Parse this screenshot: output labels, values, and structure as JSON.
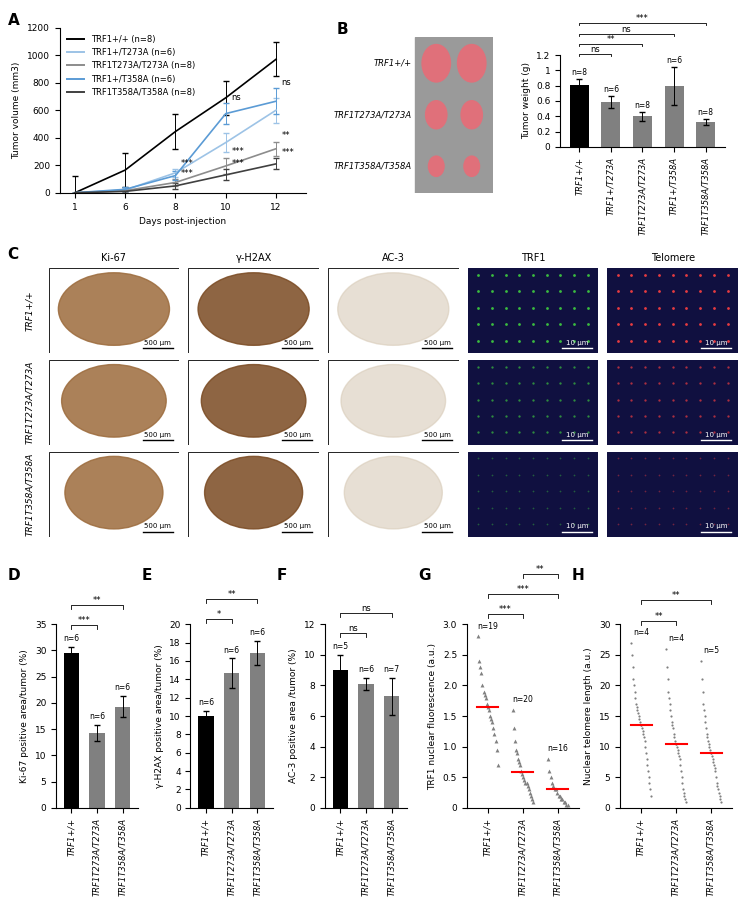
{
  "chart_data": [
    {
      "panel": "A",
      "type": "line",
      "x_label": "Days post-injection",
      "y_label": "Tumor volume (mm3)",
      "categories": [
        "1",
        "6",
        "8",
        "10",
        "12"
      ],
      "ylim": [
        0,
        1200
      ],
      "yticks": [
        0,
        200,
        400,
        600,
        800,
        1000,
        1200
      ],
      "legend": "upper left",
      "series": [
        {
          "name": "TRF1+/+ (n=8)",
          "color": "#000000",
          "values": [
            0,
            165,
            445,
            690,
            970
          ],
          "errors": [
            125,
            125,
            125,
            125,
            125
          ]
        },
        {
          "name": "TRF1+/T273A (n=6)",
          "color": "#9dc3e6",
          "values": [
            0,
            20,
            145,
            365,
            600
          ],
          "errors": [
            0,
            15,
            30,
            70,
            90
          ]
        },
        {
          "name": "TRF1T273A/T273A (n=8)",
          "color": "#8c8c8c",
          "values": [
            0,
            15,
            75,
            195,
            320
          ],
          "errors": [
            0,
            10,
            25,
            60,
            50
          ]
        },
        {
          "name": "TRF1+/T358A (n=6)",
          "color": "#5b9bd5",
          "values": [
            0,
            25,
            125,
            575,
            665
          ],
          "errors": [
            0,
            15,
            30,
            75,
            95
          ]
        },
        {
          "name": "TRF1T358A/T358A (n=8)",
          "color": "#404040",
          "values": [
            0,
            10,
            50,
            130,
            210
          ],
          "errors": [
            0,
            8,
            20,
            40,
            40
          ]
        }
      ],
      "annotations": [
        {
          "series": "TRF1+/T358A (n=6)",
          "x": "10",
          "label": "ns"
        },
        {
          "series": "TRF1+/T358A (n=6)",
          "x": "12",
          "label": "ns"
        },
        {
          "series": "TRF1T273A/T273A (n=8)",
          "x": "8",
          "label": "***"
        },
        {
          "series": "TRF1T358A/T358A (n=8)",
          "x": "8",
          "label": "***"
        },
        {
          "series": "TRF1T273A/T273A (n=8)",
          "x": "10",
          "label": "***"
        },
        {
          "series": "TRF1T358A/T358A (n=8)",
          "x": "10",
          "label": "***"
        },
        {
          "series": "TRF1T273A/T273A (n=8)",
          "x": "12",
          "label": "**"
        },
        {
          "series": "TRF1T358A/T358A (n=8)",
          "x": "12",
          "label": "***"
        }
      ]
    },
    {
      "panel": "B",
      "type": "bar",
      "y_label": "Tumor weight (g)",
      "categories": [
        "TRF1+/+",
        "TRF1+/T273A",
        "TRF1T273A/T273A",
        "TRF1+/T358A",
        "TRF1T358A/T358A"
      ],
      "values": [
        0.81,
        0.59,
        0.4,
        0.8,
        0.33
      ],
      "errors": [
        0.08,
        0.08,
        0.06,
        0.25,
        0.04
      ],
      "colors": [
        "#000000",
        "#808080",
        "#808080",
        "#808080",
        "#808080"
      ],
      "n_labels": [
        "n=8",
        "n=6",
        "n=8",
        "n=6",
        "n=8"
      ],
      "ylim": [
        0,
        1.2
      ],
      "yticks": [
        0,
        0.2,
        0.4,
        0.6,
        0.8,
        1,
        1.2
      ],
      "significance": [
        {
          "between": [
            "TRF1+/+",
            "TRF1+/T273A"
          ],
          "label": "ns"
        },
        {
          "between": [
            "TRF1+/+",
            "TRF1T273A/T273A"
          ],
          "label": "**"
        },
        {
          "between": [
            "TRF1+/+",
            "TRF1+/T358A"
          ],
          "label": "ns"
        },
        {
          "between": [
            "TRF1+/+",
            "TRF1T358A/T358A"
          ],
          "label": "***"
        }
      ],
      "photo_labels": [
        "TRF1+/+",
        "TRF1T273A/T273A",
        "TRF1T358A/T358A"
      ]
    },
    {
      "panel": "D",
      "type": "bar",
      "y_label": "Ki-67 positive area/tumor (%)",
      "categories": [
        "TRF1+/+",
        "TRF1T273A/T273A",
        "TRF1T358A/T358A"
      ],
      "values": [
        29.5,
        14.3,
        19.3
      ],
      "errors": [
        1.2,
        1.5,
        2.0
      ],
      "colors": [
        "#000000",
        "#808080",
        "#808080"
      ],
      "n_labels": [
        "n=6",
        "n=6",
        "n=6"
      ],
      "ylim": [
        0,
        35
      ],
      "yticks": [
        0,
        5,
        10,
        15,
        20,
        25,
        30,
        35
      ],
      "significance": [
        {
          "between": [
            "TRF1+/+",
            "TRF1T273A/T273A"
          ],
          "label": "***"
        },
        {
          "between": [
            "TRF1+/+",
            "TRF1T358A/T358A"
          ],
          "label": "**"
        }
      ]
    },
    {
      "panel": "E",
      "type": "bar",
      "y_label": "γ-H2AX positive area/tumor (%)",
      "categories": [
        "TRF1+/+",
        "TRF1T273A/T273A",
        "TRF1T358A/T358A"
      ],
      "values": [
        10.0,
        14.7,
        16.9
      ],
      "errors": [
        0.6,
        1.6,
        1.3
      ],
      "colors": [
        "#000000",
        "#808080",
        "#808080"
      ],
      "n_labels": [
        "n=6",
        "n=6",
        "n=6"
      ],
      "ylim": [
        0,
        20
      ],
      "yticks": [
        0,
        2,
        4,
        6,
        8,
        10,
        12,
        14,
        16,
        18,
        20
      ],
      "significance": [
        {
          "between": [
            "TRF1+/+",
            "TRF1T273A/T273A"
          ],
          "label": "*"
        },
        {
          "between": [
            "TRF1+/+",
            "TRF1T358A/T358A"
          ],
          "label": "**"
        }
      ]
    },
    {
      "panel": "F",
      "type": "bar",
      "y_label": "AC-3 positive area /tumor (%)",
      "categories": [
        "TRF1+/+",
        "TRF1T273A/T273A",
        "TRF1T358A/T358A"
      ],
      "values": [
        9.0,
        8.1,
        7.3
      ],
      "errors": [
        1.0,
        0.4,
        1.2
      ],
      "colors": [
        "#000000",
        "#808080",
        "#808080"
      ],
      "n_labels": [
        "n=5",
        "n=6",
        "n=7"
      ],
      "ylim": [
        0,
        12
      ],
      "yticks": [
        0,
        2,
        4,
        6,
        8,
        10,
        12
      ],
      "significance": [
        {
          "between": [
            "TRF1+/+",
            "TRF1T273A/T273A"
          ],
          "label": "ns"
        },
        {
          "between": [
            "TRF1+/+",
            "TRF1T358A/T358A"
          ],
          "label": "ns"
        }
      ]
    },
    {
      "panel": "G",
      "type": "scatter",
      "y_label": "TRF1 nuclear fluorescence (a.u.)",
      "categories": [
        "TRF1+/+",
        "TRF1T273A/T273A",
        "TRF1T358A/T358A"
      ],
      "points": [
        [
          2.8,
          2.4,
          2.3,
          2.2,
          2.0,
          1.9,
          1.85,
          1.8,
          1.7,
          1.65,
          1.6,
          1.5,
          1.45,
          1.4,
          1.3,
          1.2,
          1.1,
          0.95,
          0.7
        ],
        [
          1.6,
          1.3,
          1.1,
          0.95,
          0.9,
          0.8,
          0.75,
          0.7,
          0.6,
          0.55,
          0.5,
          0.45,
          0.4,
          0.4,
          0.35,
          0.3,
          0.25,
          0.2,
          0.15,
          0.1
        ],
        [
          0.8,
          0.6,
          0.5,
          0.4,
          0.35,
          0.3,
          0.3,
          0.25,
          0.2,
          0.2,
          0.15,
          0.15,
          0.1,
          0.1,
          0.05,
          0.05
        ]
      ],
      "means": [
        1.65,
        0.58,
        0.3
      ],
      "color": "#808080",
      "marker": "triangle",
      "n_labels": [
        "n=19",
        "n=20",
        "n=16"
      ],
      "ylim": [
        0,
        3.0
      ],
      "yticks": [
        0,
        0.5,
        {
          "value": 1,
          "label": "1.0"
        },
        1.5,
        {
          "value": 2,
          "label": "2.0"
        },
        2.5,
        {
          "value": 3,
          "label": "3.0"
        }
      ],
      "significance": [
        {
          "between": [
            "TRF1+/+",
            "TRF1T273A/T273A"
          ],
          "label": "***"
        },
        {
          "between": [
            "TRF1+/+",
            "TRF1T358A/T358A"
          ],
          "label": "***"
        },
        {
          "between": [
            "TRF1T273A/T273A",
            "TRF1T358A/T358A"
          ],
          "label": "**"
        }
      ]
    },
    {
      "panel": "H",
      "type": "scatter",
      "y_label": "Nuclear telomere length (a.u.)",
      "categories": [
        "TRF1+/+",
        "TRF1T273A/T273A",
        "TRF1T358A/T358A"
      ],
      "points": [
        [
          27,
          25,
          23,
          21,
          20,
          19,
          18,
          17,
          16.5,
          16,
          15.5,
          15,
          14.5,
          14,
          13.5,
          13.5,
          13,
          12.5,
          12,
          11.5,
          11,
          10,
          9,
          8,
          7,
          6,
          5,
          4,
          3,
          2
        ],
        [
          26,
          23,
          21,
          19,
          18,
          17,
          16,
          15,
          14,
          13.5,
          13,
          12,
          11.5,
          11,
          10.5,
          10.5,
          10,
          9.5,
          9,
          8.5,
          8,
          7,
          6,
          5,
          4,
          3,
          2.5,
          2,
          1.5,
          1
        ],
        [
          24,
          21,
          19,
          17,
          16,
          15,
          14,
          13,
          12,
          11.5,
          11,
          10.5,
          10,
          9.5,
          9,
          9,
          8.5,
          8,
          7.5,
          7,
          6.5,
          6,
          5,
          4,
          3.5,
          3,
          2.5,
          2,
          1.5,
          1
        ]
      ],
      "means": [
        13.5,
        10.5,
        9.0
      ],
      "color": "#808080",
      "marker": "dot",
      "n_labels": [
        "n=4",
        "n=4",
        "n=5"
      ],
      "ylim": [
        0,
        30
      ],
      "yticks": [
        0,
        5,
        10,
        15,
        20,
        25,
        30
      ],
      "significance": [
        {
          "between": [
            "TRF1+/+",
            "TRF1T273A/T273A"
          ],
          "label": "**"
        },
        {
          "between": [
            "TRF1+/+",
            "TRF1T358A/T358A"
          ],
          "label": "**"
        }
      ]
    }
  ],
  "image_panel": {
    "panel": "C",
    "columns": [
      "Ki-67",
      "γ-H2AX",
      "AC-3",
      "TRF1",
      "Telomere"
    ],
    "rows": [
      "TRF1+/+",
      "TRF1T273A/T273A",
      "TRF1T358A/T358A"
    ],
    "scale_bars": [
      "500 µm",
      "500 µm",
      "500 µm",
      "10 µm",
      "10 µm"
    ]
  }
}
